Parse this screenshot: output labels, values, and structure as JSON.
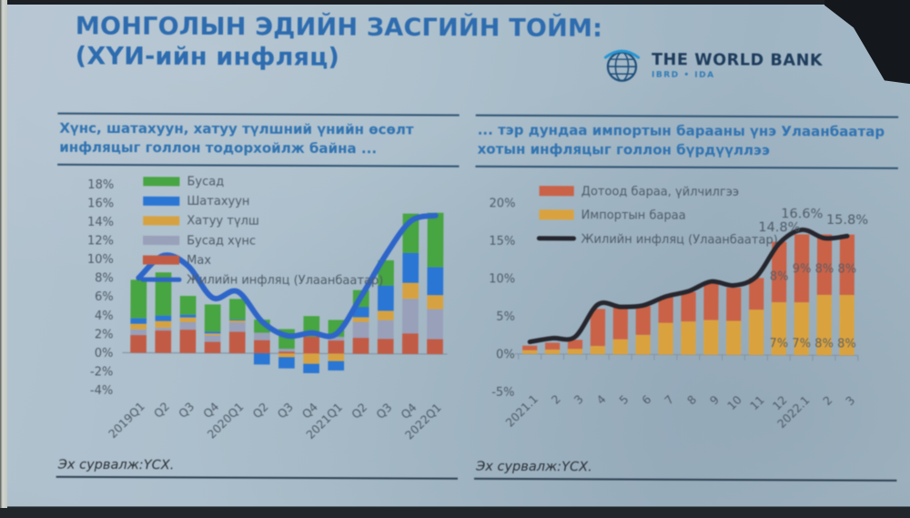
{
  "header": {
    "title_line1": "МОНГОЛЫН ЭДИЙН ЗАСГИЙН ТОЙМ:",
    "title_line2": "(ХҮИ-ийн инфляц)",
    "logo_title": "THE WORLD BANK",
    "logo_subtitle": "IBRD • IDA"
  },
  "left_panel": {
    "subtitle": "Хүнс, шатахуун, хатуу түлшний үнийн өсөлт инфляцыг голлон тодорхойлж байна ...",
    "source": "Эх сурвалж:ҮСХ."
  },
  "right_panel": {
    "subtitle": "... тэр дундаа импортын барааны үнэ Улаанбаатар хотын инфляцыг голлон бүрдүүллээ",
    "source": "Эх сурвалж:ҮСХ."
  },
  "chart_data": [
    {
      "id": "chartL",
      "type": "bar",
      "stacked": true,
      "title": "",
      "xlabel": "",
      "ylabel": "",
      "grid": false,
      "legend_position": "top-left",
      "categories": [
        "2019Q1",
        "Q2",
        "Q3",
        "Q4",
        "2020Q1",
        "Q2",
        "Q3",
        "Q4",
        "2021Q1",
        "Q2",
        "Q3",
        "Q4",
        "2022Q1"
      ],
      "series": [
        {
          "name": "Бусад",
          "color": "#44a63e",
          "values": [
            4.1,
            4.6,
            2.0,
            2.9,
            2.2,
            1.4,
            2.1,
            2.2,
            1.8,
            1.8,
            2.7,
            4.2,
            5.8
          ]
        },
        {
          "name": "Шатахуун",
          "color": "#2676d9",
          "values": [
            0.6,
            0.6,
            0.3,
            0.2,
            0.1,
            -1.2,
            -1.2,
            -1.0,
            -1.0,
            1.1,
            2.7,
            3.2,
            3.0
          ]
        },
        {
          "name": "Хатуу түлш",
          "color": "#d9a23c",
          "values": [
            0.6,
            0.7,
            0.5,
            0.2,
            0.2,
            0.0,
            -0.4,
            -1.1,
            -0.8,
            0.5,
            1.0,
            1.7,
            1.5
          ]
        },
        {
          "name": "Бусад хүнс",
          "color": "#98a0bb",
          "values": [
            0.6,
            0.3,
            0.8,
            0.7,
            1.0,
            0.8,
            0.3,
            0.0,
            0.4,
            1.7,
            2.0,
            3.7,
            3.2
          ]
        },
        {
          "name": "Мах",
          "color": "#c65a43",
          "values": [
            1.9,
            2.4,
            2.5,
            1.2,
            2.3,
            1.4,
            0.2,
            1.8,
            1.4,
            1.7,
            1.6,
            2.2,
            1.6
          ]
        }
      ],
      "line_series": {
        "name": "Жилийн инфляц (Улаанбаатар)",
        "color": "#2b65cf",
        "values": [
          8.0,
          10.4,
          9.3,
          5.9,
          6.6,
          3.4,
          1.9,
          2.2,
          2.1,
          6.1,
          10.6,
          14.2,
          14.8
        ]
      },
      "ylim": [
        -5.2,
        19
      ],
      "yticks": [
        18,
        16,
        14,
        12,
        10,
        8,
        6,
        4,
        2,
        0,
        -2,
        -4
      ]
    },
    {
      "id": "chartR",
      "type": "bar",
      "stacked": true,
      "title": "",
      "xlabel": "",
      "ylabel": "",
      "grid": false,
      "legend_position": "top-left",
      "categories": [
        "2021.1",
        "2",
        "3",
        "4",
        "5",
        "6",
        "7",
        "8",
        "9",
        "10",
        "11",
        "12",
        "2022.1",
        "2",
        "3"
      ],
      "series": [
        {
          "name": "Дотоод бараа, үйлчилгээ",
          "color": "#ce6146",
          "values": [
            0.6,
            0.9,
            1.2,
            4.9,
            4.2,
            3.8,
            3.4,
            3.9,
            4.9,
            4.4,
            4.2,
            8.0,
            9.0,
            8.0,
            8.0
          ],
          "labels": {
            "start": 11,
            "pos": "upper",
            "texts": [
              "8%",
              "9%",
              "8%",
              "8%"
            ]
          }
        },
        {
          "name": "Импортын бараа",
          "color": "#dda239",
          "values": [
            0.5,
            0.6,
            0.7,
            1.1,
            2.0,
            2.6,
            4.2,
            4.4,
            4.6,
            4.5,
            6.0,
            7.0,
            7.0,
            8.0,
            8.0
          ],
          "labels": {
            "start": 11,
            "pos": "lower",
            "texts": [
              "7%",
              "7%",
              "8%",
              "8%"
            ]
          }
        }
      ],
      "line_series": {
        "name": "Жилийн инфляц (Улаанбаатар)",
        "color": "#26262e",
        "values": [
          1.6,
          2.1,
          2.3,
          6.6,
          6.3,
          6.5,
          7.7,
          8.4,
          9.7,
          9.2,
          10.4,
          14.8,
          16.6,
          15.5,
          15.8
        ]
      },
      "annotations": [
        {
          "index": 11,
          "text": "14.8%"
        },
        {
          "index": 12,
          "text": "16.6%"
        },
        {
          "index": 14,
          "text": "15.8%"
        }
      ],
      "ylim": [
        -7,
        23
      ],
      "yticks": [
        20,
        15,
        10,
        5,
        0,
        -5
      ]
    }
  ]
}
